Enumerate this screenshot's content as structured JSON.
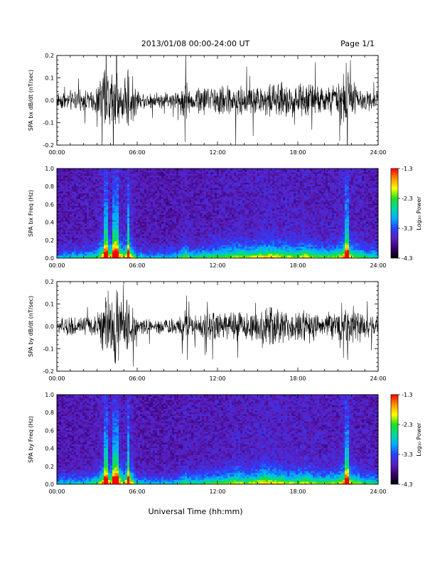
{
  "header": {
    "title": "2013/01/08  00:00-24:00 UT",
    "page": "Page 1/1"
  },
  "footer": {
    "xlabel": "Universal Time (hh:mm)"
  },
  "colorbar": {
    "label": "Log₁₀ Power",
    "ticks": [
      "-1.3",
      "-2.3",
      "-3.3",
      "-4.3"
    ],
    "range": [
      -4.3,
      -1.3
    ],
    "colors": [
      "#000000",
      "#3a0070",
      "#5a1fbf",
      "#2a40ff",
      "#00b0ff",
      "#00d8a0",
      "#20e020",
      "#ffff00",
      "#ff9000",
      "#ff0000"
    ]
  },
  "chart_data": [
    {
      "type": "line",
      "ylabel": "SPA bx dB/dt (nT/sec)",
      "xlim": [
        0,
        24
      ],
      "ylim": [
        -0.2,
        0.2
      ],
      "xticks": [
        "00:00",
        "06:00",
        "12:00",
        "18:00",
        "24:00"
      ],
      "yticks": [
        "0.2",
        "0.1",
        "0.0",
        "-0.1",
        "-0.2"
      ],
      "x_hours": [
        0,
        1,
        2,
        3,
        3.7,
        4.0,
        4.3,
        4.5,
        5.0,
        5.3,
        6,
        7,
        8,
        9,
        9.7,
        10,
        11,
        12,
        13,
        13.5,
        14,
        15,
        15.5,
        16,
        17,
        18,
        18.5,
        19,
        20,
        21,
        21.7,
        22,
        23,
        24
      ],
      "envelope": [
        0.04,
        0.05,
        0.05,
        0.07,
        0.2,
        0.12,
        0.2,
        0.2,
        0.08,
        0.18,
        0.05,
        0.04,
        0.04,
        0.05,
        0.12,
        0.06,
        0.07,
        0.08,
        0.08,
        0.1,
        0.07,
        0.08,
        0.09,
        0.1,
        0.09,
        0.08,
        0.12,
        0.08,
        0.07,
        0.08,
        0.2,
        0.1,
        0.06,
        0.05
      ]
    },
    {
      "type": "heatmap",
      "ylabel": "SPA bx Freq (Hz)",
      "xlim": [
        0,
        24
      ],
      "ylim": [
        0,
        1
      ],
      "xticks": [
        "00:00",
        "06:00",
        "12:00",
        "18:00",
        "24:00"
      ],
      "yticks": [
        "1.0",
        "0.8",
        "0.6",
        "0.4",
        "0.2",
        "0.0"
      ],
      "colorbar_label": "Log₁₀ Power",
      "colorbar_range": [
        -4.3,
        -1.3
      ],
      "x_hours": [
        0,
        1,
        2,
        3,
        3.7,
        4.0,
        4.3,
        4.5,
        5.0,
        5.3,
        6,
        7,
        8,
        9,
        9.7,
        10,
        11,
        12,
        13,
        13.5,
        14,
        15,
        15.5,
        16,
        17,
        18,
        18.5,
        19,
        20,
        21,
        21.7,
        22,
        23,
        24
      ],
      "activity": [
        0.35,
        0.4,
        0.4,
        0.5,
        0.95,
        0.7,
        0.95,
        0.95,
        0.6,
        0.9,
        0.4,
        0.35,
        0.35,
        0.4,
        0.6,
        0.45,
        0.5,
        0.55,
        0.6,
        0.65,
        0.6,
        0.65,
        0.7,
        0.7,
        0.65,
        0.6,
        0.7,
        0.6,
        0.55,
        0.6,
        0.9,
        0.65,
        0.5,
        0.45
      ]
    },
    {
      "type": "line",
      "ylabel": "SPA by dB/dt (nT/sec)",
      "xlim": [
        0,
        24
      ],
      "ylim": [
        -0.2,
        0.2
      ],
      "xticks": [
        "00:00",
        "06:00",
        "12:00",
        "18:00",
        "24:00"
      ],
      "yticks": [
        "0.2",
        "0.1",
        "0.0",
        "-0.1",
        "-0.2"
      ],
      "x_hours": [
        0,
        1,
        2,
        3,
        3.7,
        4.0,
        4.3,
        4.5,
        5.0,
        5.3,
        6,
        7,
        8,
        9,
        9.7,
        10,
        11,
        12,
        13,
        13.5,
        14,
        15,
        15.5,
        16,
        17,
        18,
        18.5,
        19,
        20,
        21,
        21.7,
        22,
        23,
        24
      ],
      "envelope": [
        0.04,
        0.05,
        0.05,
        0.06,
        0.2,
        0.12,
        0.2,
        0.2,
        0.08,
        0.18,
        0.04,
        0.04,
        0.04,
        0.05,
        0.09,
        0.05,
        0.06,
        0.08,
        0.07,
        0.09,
        0.07,
        0.08,
        0.12,
        0.1,
        0.08,
        0.07,
        0.1,
        0.07,
        0.06,
        0.09,
        0.2,
        0.1,
        0.06,
        0.05
      ]
    },
    {
      "type": "heatmap",
      "ylabel": "SPA by Freq (Hz)",
      "xlim": [
        0,
        24
      ],
      "ylim": [
        0,
        1
      ],
      "xticks": [
        "00:00",
        "06:00",
        "12:00",
        "18:00",
        "24:00"
      ],
      "yticks": [
        "1.0",
        "0.8",
        "0.6",
        "0.4",
        "0.2",
        "0.0"
      ],
      "colorbar_label": "Log₁₀ Power",
      "colorbar_range": [
        -4.3,
        -1.3
      ],
      "x_hours": [
        0,
        1,
        2,
        3,
        3.7,
        4.0,
        4.3,
        4.5,
        5.0,
        5.3,
        6,
        7,
        8,
        9,
        9.7,
        10,
        11,
        12,
        13,
        13.5,
        14,
        15,
        15.5,
        16,
        17,
        18,
        18.5,
        19,
        20,
        21,
        21.7,
        22,
        23,
        24
      ],
      "activity": [
        0.35,
        0.4,
        0.4,
        0.5,
        0.95,
        0.7,
        0.95,
        0.95,
        0.6,
        0.9,
        0.4,
        0.35,
        0.35,
        0.4,
        0.55,
        0.45,
        0.5,
        0.55,
        0.6,
        0.65,
        0.6,
        0.65,
        0.75,
        0.7,
        0.65,
        0.6,
        0.7,
        0.6,
        0.55,
        0.6,
        0.9,
        0.65,
        0.5,
        0.45
      ]
    }
  ]
}
